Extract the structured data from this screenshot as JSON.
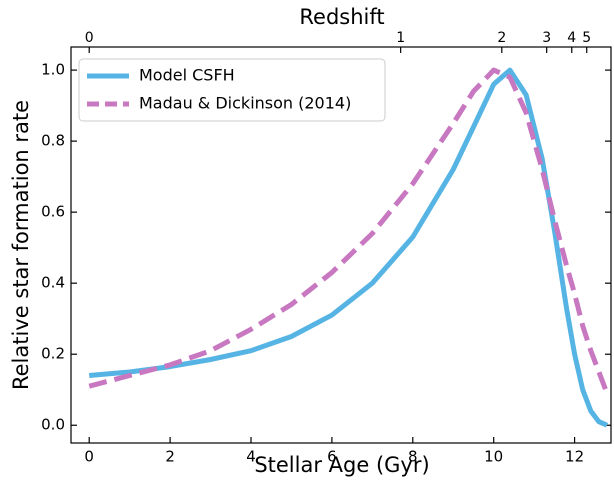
{
  "chart_data": {
    "type": "line",
    "xlabel": "Stellar Age (Gyr)",
    "ylabel": "Relative star formation rate",
    "x2label": "Redshift",
    "x": [
      0,
      1,
      2,
      3,
      4,
      5,
      6,
      7,
      8,
      9,
      9.5,
      10,
      10.4,
      10.8,
      11.2,
      11.5,
      11.8,
      12,
      12.2,
      12.4,
      12.6,
      12.8
    ],
    "series": [
      {
        "name": "Model CSFH",
        "color": "#56b4e4",
        "dash": "solid",
        "values": [
          0.14,
          0.15,
          0.165,
          0.185,
          0.21,
          0.25,
          0.31,
          0.4,
          0.53,
          0.72,
          0.84,
          0.96,
          1.0,
          0.93,
          0.75,
          0.55,
          0.33,
          0.2,
          0.1,
          0.04,
          0.01,
          0.0
        ]
      },
      {
        "name": "Madau & Dickinson (2014)",
        "color": "#c878c0",
        "dash": "dashed",
        "values": [
          0.11,
          0.14,
          0.17,
          0.21,
          0.27,
          0.34,
          0.43,
          0.54,
          0.68,
          0.85,
          0.94,
          1.0,
          0.98,
          0.88,
          0.72,
          0.58,
          0.45,
          0.37,
          0.28,
          0.21,
          0.15,
          0.09
        ]
      }
    ],
    "xlim": [
      -0.45,
      12.9
    ],
    "ylim": [
      -0.05,
      1.065
    ],
    "xticks": [
      0,
      2,
      4,
      6,
      8,
      10,
      12
    ],
    "yticks": [
      {
        "value": 0,
        "label": "0.0"
      },
      {
        "value": 0.2,
        "label": "0.2"
      },
      {
        "value": 0.4,
        "label": "0.4"
      },
      {
        "value": 0.6,
        "label": "0.6"
      },
      {
        "value": 0.8,
        "label": "0.8"
      },
      {
        "value": 1,
        "label": "1.0"
      }
    ],
    "x2ticks": [
      {
        "value": 0,
        "label": "0"
      },
      {
        "value": 7.7,
        "label": "1"
      },
      {
        "value": 10.2,
        "label": "2"
      },
      {
        "value": 11.31,
        "label": "3"
      },
      {
        "value": 11.93,
        "label": "4"
      },
      {
        "value": 12.3,
        "label": "5"
      }
    ],
    "legend": "upper left"
  }
}
